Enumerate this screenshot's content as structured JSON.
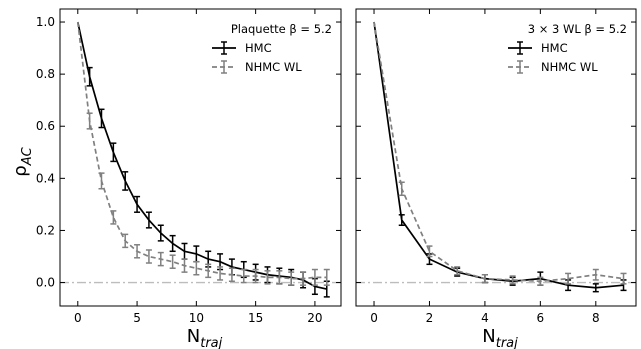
{
  "figure": {
    "ylabel_main": "ρ",
    "ylabel_sub": "AC"
  },
  "chart_data": [
    {
      "type": "line",
      "title": "Plaquette β = 5.2",
      "xlabel_main": "N",
      "xlabel_sub": "traj",
      "xlim": [
        -1.5,
        22.2
      ],
      "ylim": [
        -0.09,
        1.05
      ],
      "xticks": [
        0,
        5,
        10,
        15,
        20
      ],
      "yticks": [
        0.0,
        0.2,
        0.4,
        0.6,
        0.8,
        1.0
      ],
      "xtick_labels": [
        "0",
        "5",
        "10",
        "15",
        "20"
      ],
      "ytick_labels": [
        "0.0",
        "0.2",
        "0.4",
        "0.6",
        "0.8",
        "1.0"
      ],
      "reference_line": 0.0,
      "legend_position": "top-right",
      "series": [
        {
          "name": "HMC",
          "color": "#000000",
          "style": "solid",
          "x": [
            0,
            1,
            2,
            3,
            4,
            5,
            6,
            7,
            8,
            9,
            10,
            11,
            12,
            13,
            14,
            15,
            16,
            17,
            18,
            19,
            20,
            21
          ],
          "y": [
            1.0,
            0.79,
            0.63,
            0.5,
            0.39,
            0.3,
            0.24,
            0.19,
            0.15,
            0.12,
            0.11,
            0.09,
            0.08,
            0.06,
            0.05,
            0.04,
            0.03,
            0.025,
            0.02,
            0.01,
            -0.015,
            -0.025
          ],
          "err": [
            0,
            0.035,
            0.035,
            0.035,
            0.035,
            0.03,
            0.03,
            0.03,
            0.03,
            0.03,
            0.03,
            0.03,
            0.03,
            0.03,
            0.03,
            0.03,
            0.03,
            0.03,
            0.03,
            0.03,
            0.03,
            0.03
          ]
        },
        {
          "name": "NHMC WL",
          "color": "#808080",
          "style": "dashed",
          "x": [
            0,
            1,
            2,
            3,
            4,
            5,
            6,
            7,
            8,
            9,
            10,
            11,
            12,
            13,
            14,
            15,
            16,
            17,
            18,
            19,
            20,
            21
          ],
          "y": [
            1.0,
            0.62,
            0.39,
            0.25,
            0.16,
            0.12,
            0.1,
            0.09,
            0.08,
            0.065,
            0.055,
            0.045,
            0.035,
            0.03,
            0.025,
            0.025,
            0.02,
            0.02,
            0.015,
            0.015,
            0.02,
            0.02
          ],
          "err": [
            0,
            0.03,
            0.03,
            0.025,
            0.025,
            0.025,
            0.025,
            0.025,
            0.025,
            0.025,
            0.025,
            0.025,
            0.025,
            0.025,
            0.025,
            0.025,
            0.025,
            0.025,
            0.025,
            0.025,
            0.03,
            0.03
          ]
        }
      ]
    },
    {
      "type": "line",
      "title": "3 × 3 WL β = 5.2",
      "xlabel_main": "N",
      "xlabel_sub": "traj",
      "xlim": [
        -0.65,
        9.45
      ],
      "ylim": [
        -0.09,
        1.05
      ],
      "xticks": [
        0,
        2,
        4,
        6,
        8
      ],
      "yticks": [
        0.0,
        0.2,
        0.4,
        0.6,
        0.8,
        1.0
      ],
      "xtick_labels": [
        "0",
        "2",
        "4",
        "6",
        "8"
      ],
      "reference_line": 0.0,
      "legend_position": "top-right",
      "series": [
        {
          "name": "HMC",
          "color": "#000000",
          "style": "solid",
          "x": [
            0,
            1,
            2,
            3,
            4,
            5,
            6,
            7,
            8,
            9
          ],
          "y": [
            1.0,
            0.24,
            0.09,
            0.04,
            0.015,
            0.005,
            0.015,
            -0.01,
            -0.02,
            -0.01
          ],
          "err": [
            0,
            0.02,
            0.02,
            0.015,
            0.015,
            0.015,
            0.025,
            0.02,
            0.015,
            0.02
          ]
        },
        {
          "name": "NHMC WL",
          "color": "#808080",
          "style": "dashed",
          "x": [
            0,
            1,
            2,
            3,
            4,
            5,
            6,
            7,
            8,
            9
          ],
          "y": [
            1.0,
            0.36,
            0.12,
            0.045,
            0.015,
            0.01,
            0.005,
            0.015,
            0.03,
            0.015
          ],
          "err": [
            0,
            0.025,
            0.02,
            0.015,
            0.015,
            0.015,
            0.015,
            0.02,
            0.02,
            0.02
          ]
        }
      ]
    }
  ]
}
